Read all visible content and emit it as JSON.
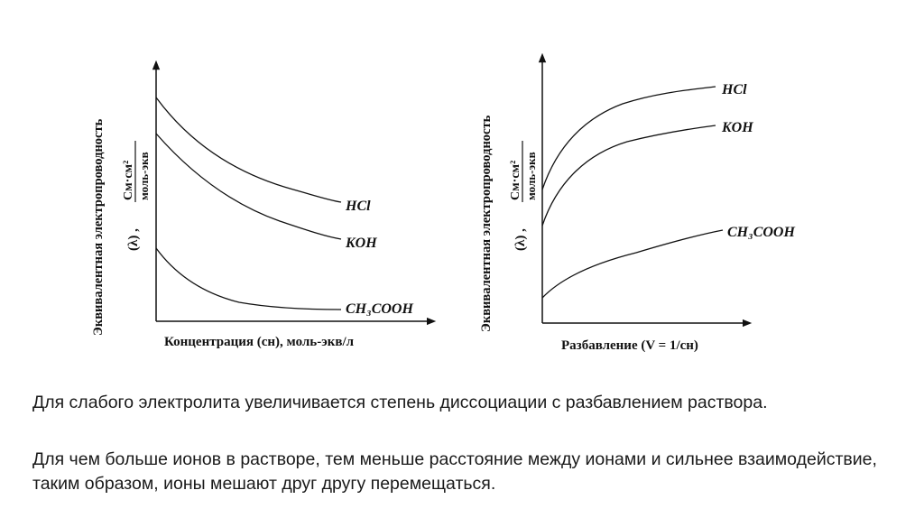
{
  "figure": {
    "left": {
      "ylabel": "Эквивалентная электропроводность",
      "ylabel_symbol": "(λ) ,",
      "unit_num": "См·см²",
      "unit_den": "моль-экв",
      "xlabel": "Концентрация (cн), моль-экв/л",
      "series_labels": [
        "HCl",
        "KOH",
        "CH₃COOH"
      ]
    },
    "right": {
      "ylabel": "Эквивалентная электропроводность",
      "ylabel_symbol": "(λ) ,",
      "unit_num": "См·см²",
      "unit_den": "моль-экв",
      "xlabel": "Разбавление (V = 1/cн)",
      "series_labels": [
        "HCl",
        "KOH",
        "CH₃COOH"
      ]
    }
  },
  "text": {
    "paragraph1": "Для слабого электролита увеличивается степень диссоциации с разбавлением раствора.",
    "paragraph2": "Для чем больше ионов в растворе, тем меньше расстояние между ионами и сильнее взаимодействие, таким образом, ионы мешают друг другу перемещаться."
  }
}
